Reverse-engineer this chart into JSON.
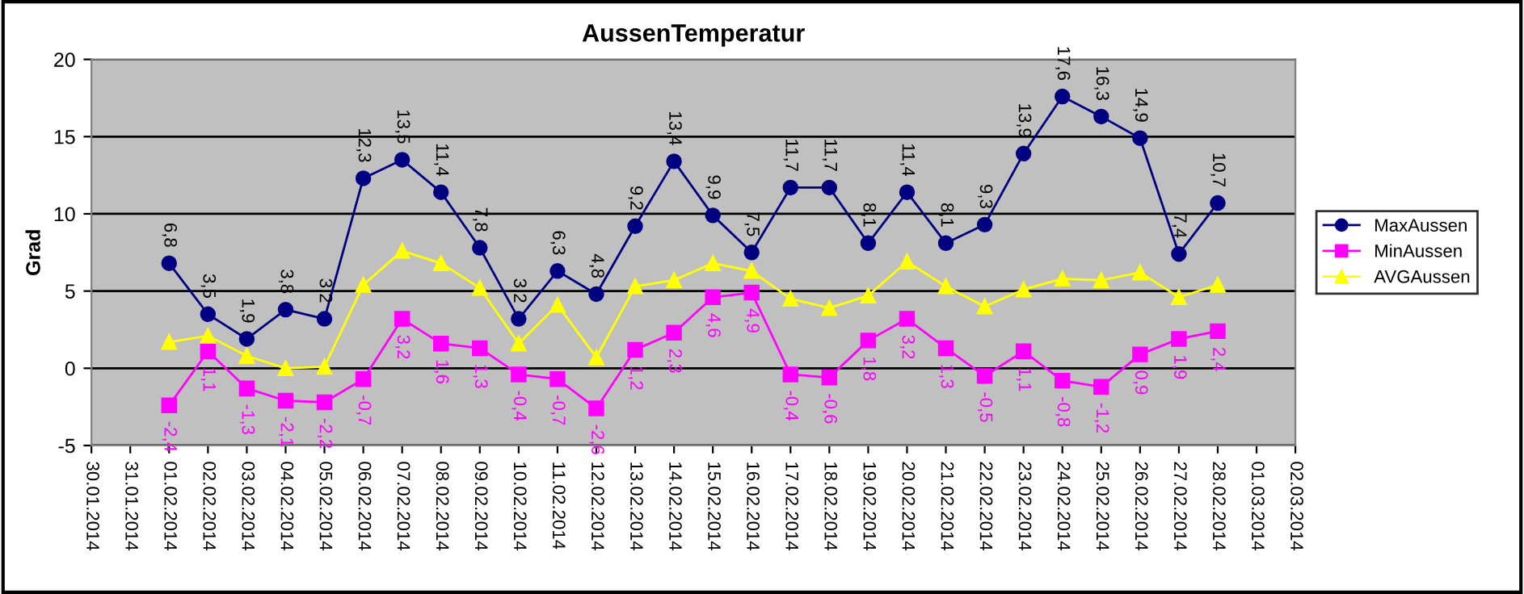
{
  "chart_data": {
    "type": "line",
    "title": "AussenTemperatur",
    "ylabel": "Grad",
    "x": [
      "2014-02-01",
      "2014-02-02",
      "2014-02-03",
      "2014-02-04",
      "2014-02-05",
      "2014-02-06",
      "2014-02-07",
      "2014-02-08",
      "2014-02-09",
      "2014-02-10",
      "2014-02-11",
      "2014-02-12",
      "2014-02-13",
      "2014-02-14",
      "2014-02-15",
      "2014-02-16",
      "2014-02-17",
      "2014-02-18",
      "2014-02-19",
      "2014-02-20",
      "2014-02-21",
      "2014-02-22",
      "2014-02-23",
      "2014-02-24",
      "2014-02-25",
      "2014-02-26",
      "2014-02-27",
      "2014-02-28"
    ],
    "series": [
      {
        "name": "MaxAussen",
        "color": "#000080",
        "marker": "circle",
        "values": [
          6.8,
          3.5,
          1.9,
          3.8,
          3.2,
          12.3,
          13.5,
          11.4,
          7.8,
          3.2,
          6.3,
          4.8,
          9.2,
          13.4,
          9.9,
          7.5,
          11.7,
          11.7,
          8.1,
          11.4,
          8.1,
          9.3,
          13.9,
          17.6,
          16.3,
          14.9,
          7.4,
          10.7
        ],
        "value_labels": [
          "6,8",
          "3,5",
          "1,9",
          "3,8",
          "3,2",
          "12,3",
          "13,5",
          "11,4",
          "7,8",
          "3,2",
          "6,3",
          "4,8",
          "9,2",
          "13,4",
          "9,9",
          "7,5",
          "11,7",
          "11,7",
          "8,1",
          "11,4",
          "8,1",
          "9,3",
          "13,9",
          "17,6",
          "16,3",
          "14,9",
          "7,4",
          "10,7"
        ]
      },
      {
        "name": "MinAussen",
        "color": "#ff00ff",
        "marker": "square",
        "values": [
          -2.4,
          1.1,
          -1.3,
          -2.1,
          -2.2,
          -0.7,
          3.2,
          1.6,
          1.3,
          -0.4,
          -0.7,
          -2.6,
          1.2,
          2.3,
          4.6,
          4.9,
          -0.4,
          -0.6,
          1.8,
          3.2,
          1.3,
          -0.5,
          1.1,
          -0.8,
          -1.2,
          0.9,
          1.9,
          2.4
        ],
        "value_labels": [
          "-2,4",
          "1,1",
          "-1,3",
          "-2,1",
          "-2,2",
          "-0,7",
          "3,2",
          "1,6",
          "1,3",
          "-0,4",
          "-0,7",
          "-2,6",
          "1,2",
          "2,3",
          "4,6",
          "4,9",
          "-0,4",
          "-0,6",
          "1,8",
          "3,2",
          "1,3",
          "-0,5",
          "1,1",
          "-0,8",
          "-1,2",
          "0,9",
          "1,9",
          "2,4"
        ]
      },
      {
        "name": "AVGAussen",
        "color": "#ffff00",
        "marker": "triangle",
        "values": [
          1.7,
          2.1,
          0.8,
          0.0,
          0.1,
          5.4,
          7.6,
          6.8,
          5.2,
          1.6,
          4.1,
          0.7,
          5.3,
          5.7,
          6.8,
          6.3,
          4.5,
          3.9,
          4.7,
          6.9,
          5.3,
          4.0,
          5.1,
          5.8,
          5.7,
          6.2,
          4.6,
          5.4
        ]
      }
    ],
    "xlim": [
      "2014-01-30",
      "2014-03-02"
    ],
    "xticks": [
      {
        "value": "2014-01-30",
        "label": "30.01.2014"
      },
      {
        "value": "2014-01-31",
        "label": "31.01.2014"
      },
      {
        "value": "2014-02-01",
        "label": "01.02.2014"
      },
      {
        "value": "2014-02-02",
        "label": "02.02.2014"
      },
      {
        "value": "2014-02-03",
        "label": "03.02.2014"
      },
      {
        "value": "2014-02-04",
        "label": "04.02.2014"
      },
      {
        "value": "2014-02-05",
        "label": "05.02.2014"
      },
      {
        "value": "2014-02-06",
        "label": "06.02.2014"
      },
      {
        "value": "2014-02-07",
        "label": "07.02.2014"
      },
      {
        "value": "2014-02-08",
        "label": "08.02.2014"
      },
      {
        "value": "2014-02-09",
        "label": "09.02.2014"
      },
      {
        "value": "2014-02-10",
        "label": "10.02.2014"
      },
      {
        "value": "2014-02-11",
        "label": "11.02.2014"
      },
      {
        "value": "2014-02-12",
        "label": "12.02.2014"
      },
      {
        "value": "2014-02-13",
        "label": "13.02.2014"
      },
      {
        "value": "2014-02-14",
        "label": "14.02.2014"
      },
      {
        "value": "2014-02-15",
        "label": "15.02.2014"
      },
      {
        "value": "2014-02-16",
        "label": "16.02.2014"
      },
      {
        "value": "2014-02-17",
        "label": "17.02.2014"
      },
      {
        "value": "2014-02-18",
        "label": "18.02.2014"
      },
      {
        "value": "2014-02-19",
        "label": "19.02.2014"
      },
      {
        "value": "2014-02-20",
        "label": "20.02.2014"
      },
      {
        "value": "2014-02-21",
        "label": "21.02.2014"
      },
      {
        "value": "2014-02-22",
        "label": "22.02.2014"
      },
      {
        "value": "2014-02-23",
        "label": "23.02.2014"
      },
      {
        "value": "2014-02-24",
        "label": "24.02.2014"
      },
      {
        "value": "2014-02-25",
        "label": "25.02.2014"
      },
      {
        "value": "2014-02-26",
        "label": "26.02.2014"
      },
      {
        "value": "2014-02-27",
        "label": "27.02.2014"
      },
      {
        "value": "2014-02-28",
        "label": "28.02.2014"
      },
      {
        "value": "2014-03-01",
        "label": "01.03.2014"
      },
      {
        "value": "2014-03-02",
        "label": "02.03.2014"
      }
    ],
    "ylim": [
      -5,
      20
    ],
    "yticks": [
      -5,
      0,
      5,
      10,
      15,
      20
    ],
    "grid": "y",
    "legend": "right",
    "line_style": "solid"
  }
}
